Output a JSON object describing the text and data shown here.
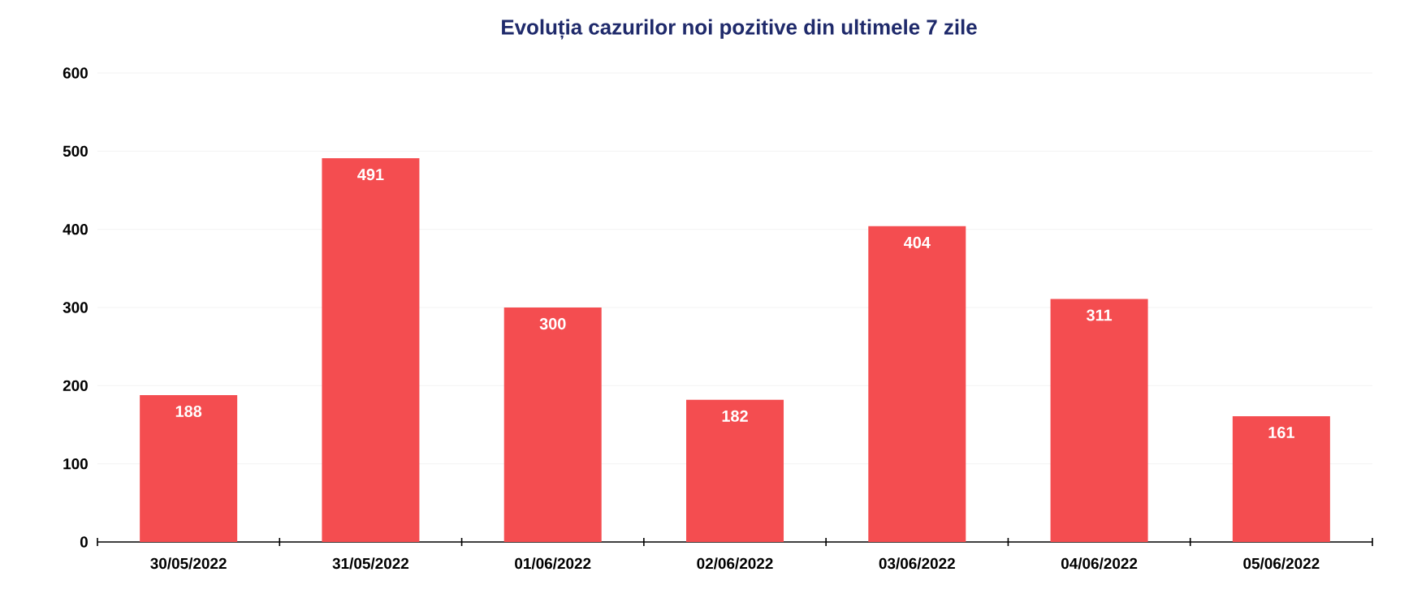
{
  "chart_data": {
    "type": "bar",
    "title": "Evoluția cazurilor noi pozitive din ultimele 7 zile",
    "categories": [
      "30/05/2022",
      "31/05/2022",
      "01/06/2022",
      "02/06/2022",
      "03/06/2022",
      "04/06/2022",
      "05/06/2022"
    ],
    "values": [
      188,
      491,
      300,
      182,
      404,
      311,
      161
    ],
    "color": "#f44d50",
    "ylim": [
      0,
      600
    ],
    "yticks": [
      0,
      100,
      200,
      300,
      400,
      500,
      600
    ],
    "grid": "y",
    "data_labels": true
  }
}
